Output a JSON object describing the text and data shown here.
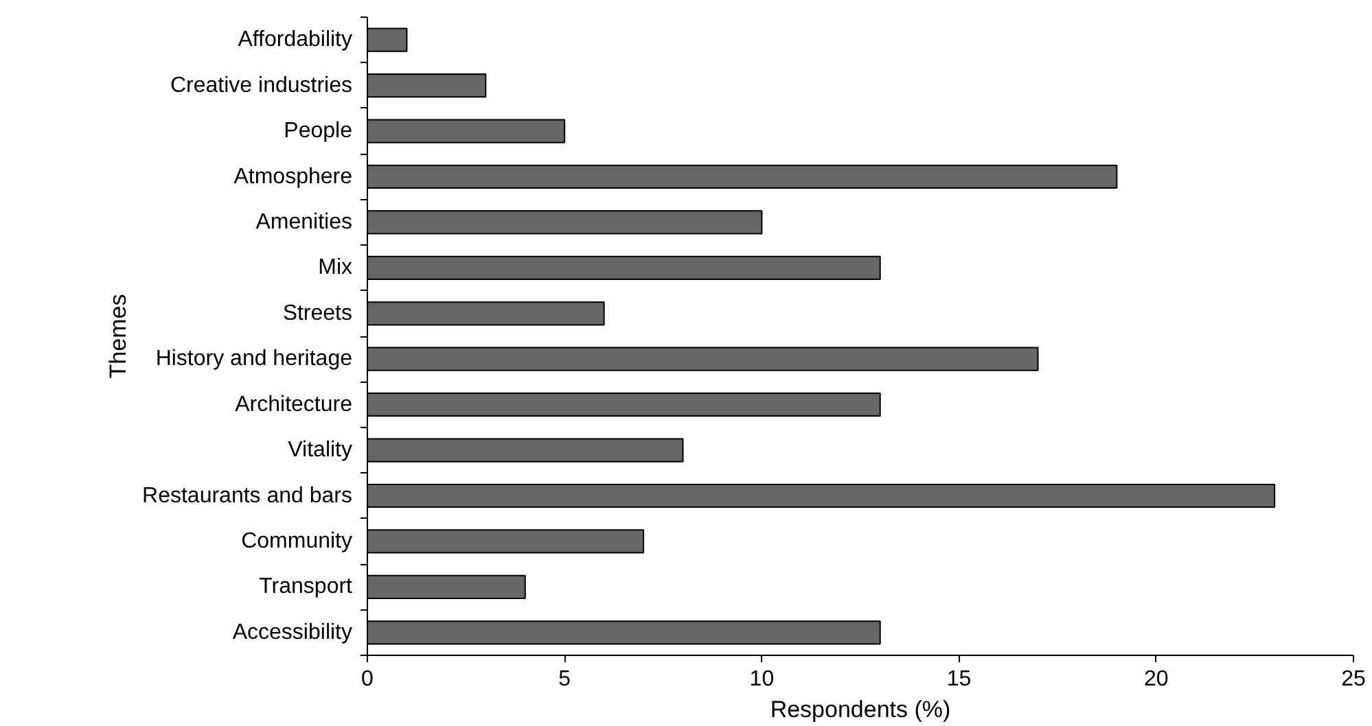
{
  "chart_data": {
    "type": "bar",
    "orientation": "horizontal",
    "xlabel": "Respondents (%)",
    "ylabel": "Themes",
    "categories": [
      "Affordability",
      "Creative industries",
      "People",
      "Atmosphere",
      "Amenities",
      "Mix",
      "Streets",
      "History and heritage",
      "Architecture",
      "Vitality",
      "Restaurants and bars",
      "Community",
      "Transport",
      "Accessibility"
    ],
    "values": [
      1,
      3,
      5,
      19,
      10,
      13,
      6,
      17,
      13,
      8,
      23,
      7,
      4,
      13
    ],
    "color": "#666666",
    "xlim": [
      0,
      25
    ],
    "xticks": [
      0,
      5,
      10,
      15,
      20,
      25
    ],
    "grid": false
  }
}
